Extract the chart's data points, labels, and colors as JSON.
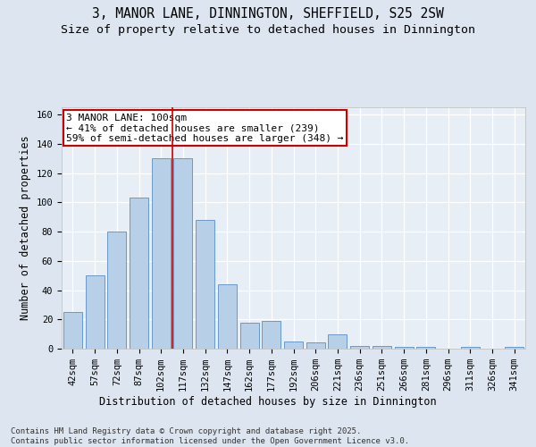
{
  "title1": "3, MANOR LANE, DINNINGTON, SHEFFIELD, S25 2SW",
  "title2": "Size of property relative to detached houses in Dinnington",
  "xlabel": "Distribution of detached houses by size in Dinnington",
  "ylabel": "Number of detached properties",
  "categories": [
    "42sqm",
    "57sqm",
    "72sqm",
    "87sqm",
    "102sqm",
    "117sqm",
    "132sqm",
    "147sqm",
    "162sqm",
    "177sqm",
    "192sqm",
    "206sqm",
    "221sqm",
    "236sqm",
    "251sqm",
    "266sqm",
    "281sqm",
    "296sqm",
    "311sqm",
    "326sqm",
    "341sqm"
  ],
  "values": [
    25,
    50,
    80,
    103,
    130,
    130,
    88,
    44,
    18,
    19,
    5,
    4,
    10,
    2,
    2,
    1,
    1,
    0,
    1,
    0,
    1
  ],
  "bar_color": "#b8cfe8",
  "bar_edge_color": "#6699cc",
  "vline_x_index": 4,
  "vline_color": "#cc0000",
  "annotation_text": "3 MANOR LANE: 100sqm\n← 41% of detached houses are smaller (239)\n59% of semi-detached houses are larger (348) →",
  "annotation_box_color": "#ffffff",
  "annotation_box_edge": "#cc0000",
  "bg_color": "#dde6f0",
  "plot_bg_color": "#e8eef6",
  "grid_color": "#ffffff",
  "ylim": [
    0,
    165
  ],
  "yticks": [
    0,
    20,
    40,
    60,
    80,
    100,
    120,
    140,
    160
  ],
  "footnote": "Contains HM Land Registry data © Crown copyright and database right 2025.\nContains public sector information licensed under the Open Government Licence v3.0.",
  "title_fontsize": 10.5,
  "subtitle_fontsize": 9.5,
  "axis_label_fontsize": 8.5,
  "tick_fontsize": 7.5,
  "annotation_fontsize": 8,
  "footnote_fontsize": 6.5
}
